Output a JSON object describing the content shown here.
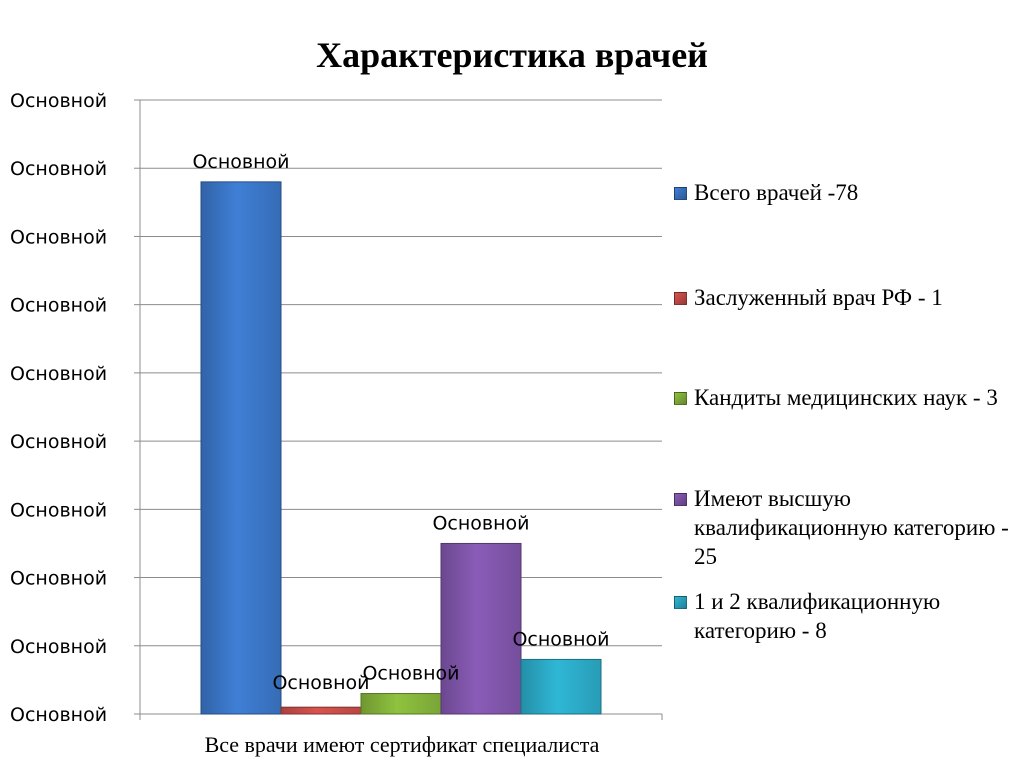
{
  "chart_data": {
    "type": "bar",
    "title": "Характеристика врачей",
    "categories": [
      "Все врачи имеют сертификат специалиста"
    ],
    "y_tick_labels": [
      "Основной",
      "Основной",
      "Основной",
      "Основной",
      "Основной",
      "Основной",
      "Основной",
      "Основной",
      "Основной",
      "Основной"
    ],
    "ylim": [
      0,
      90
    ],
    "ytick_step": 10,
    "grid": true,
    "legend_position": "right",
    "series": [
      {
        "name": "Всего врачей -78",
        "values": [
          78
        ],
        "data_label": "Основной",
        "color": "#3f7fd6"
      },
      {
        "name": "Заслуженный врач РФ - 1",
        "values": [
          1
        ],
        "data_label": "Основной",
        "color": "#d9534f"
      },
      {
        "name": "Кандиты медицинских наук - 3",
        "values": [
          3
        ],
        "data_label": "Основной",
        "color": "#8fc23f"
      },
      {
        "name": "Имеют высшую квалификационную категорию - 25",
        "values": [
          25
        ],
        "data_label": "Основной",
        "color": "#8a5cb8"
      },
      {
        "name": "1 и 2 квалификационную категорию - 8",
        "values": [
          8
        ],
        "data_label": "Основной",
        "color": "#2fb7d6"
      }
    ]
  }
}
